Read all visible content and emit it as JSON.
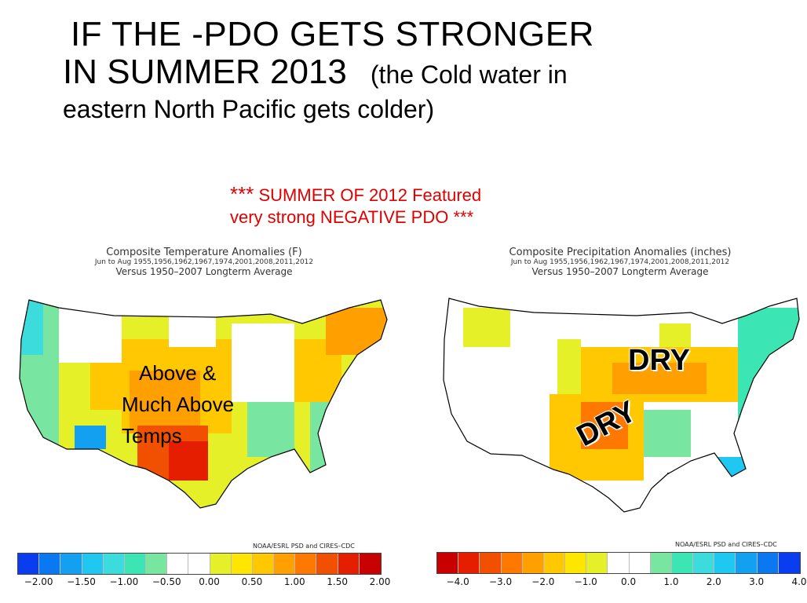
{
  "slide": {
    "title_line1": "IF  THE  -PDO  GETS STRONGER",
    "title_line2": "IN SUMMER 2013",
    "title_sub": "(the Cold water in",
    "title_line3": "eastern North Pacific gets colder)",
    "note_stars_open": "***",
    "note_line1": "SUMMER  OF 2012  Featured",
    "note_line2": "very  strong   NEGATIVE PDO ***"
  },
  "temp_map": {
    "title": "Composite Temperature Anomalies (F)",
    "years": "Jun to Aug   1955,1956,1962,1967,1974,2001,2008,2011,2012",
    "baseline": "Versus 1950–2007 Longterm Average",
    "annotation": [
      "Above &",
      "Much Above",
      "Temps"
    ],
    "credit": "NOAA/ESRL PSD and CIRES–CDC",
    "colorbar_colors": [
      "#0a3cf0",
      "#0a78f0",
      "#14a0f0",
      "#1ec8f0",
      "#3cdcdc",
      "#3ce6b4",
      "#78e6a0",
      "#ffffff",
      "#ffffff",
      "#e6f028",
      "#ffe600",
      "#ffc800",
      "#ffa000",
      "#ff7800",
      "#f05000",
      "#e61e00",
      "#c80000"
    ],
    "ticks": [
      "−2.00",
      "−1.50",
      "−1.00",
      "−0.50",
      "0.00",
      "0.50",
      "1.00",
      "1.50",
      "2.00"
    ]
  },
  "precip_map": {
    "title": "Composite Precipitation Anomalies (inches)",
    "years": "Jun to Aug   1955,1956,1962,1967,1974,2001,2008,2011,2012",
    "baseline": "Versus 1950–2007 Longterm Average",
    "dry_labels": [
      "DRY",
      "DRY"
    ],
    "credit": "NOAA/ESRL PSD and CIRES–CDC",
    "colorbar_colors": [
      "#c80000",
      "#e61e00",
      "#f05000",
      "#ff7800",
      "#ffa000",
      "#ffc800",
      "#ffe600",
      "#e6f028",
      "#ffffff",
      "#ffffff",
      "#78e6a0",
      "#3ce6b4",
      "#3cdcdc",
      "#1ec8f0",
      "#14a0f0",
      "#0a78f0",
      "#0a3cf0"
    ],
    "ticks": [
      "−4.0",
      "−3.0",
      "−2.0",
      "−1.0",
      "0.0",
      "1.0",
      "2.0",
      "3.0",
      "4.0"
    ]
  }
}
